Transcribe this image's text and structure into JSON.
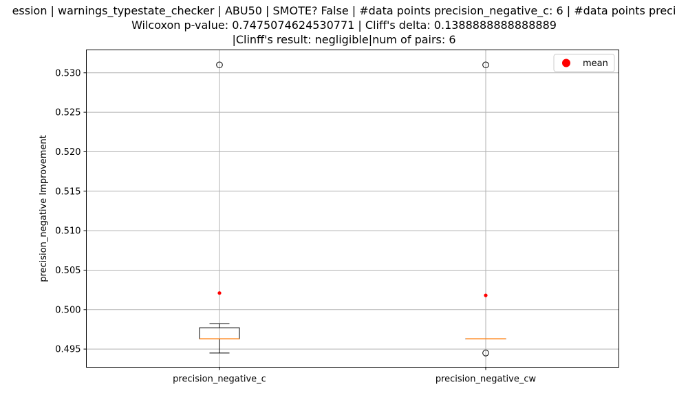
{
  "chart_data": {
    "type": "box",
    "title_lines": [
      "ession | warnings_typestate_checker | ABU50 | SMOTE? False | #data points precision_negative_c: 6 | #data points preci",
      "Wilcoxon p-value: 0.7475074624530771 | Cliff's delta: 0.1388888888888889",
      "|Clinff's result: negligible|num of pairs: 6"
    ],
    "xlabel": "",
    "ylabel": "precision_negative Improvement",
    "categories": [
      "precision_negative_c",
      "precision_negative_cw"
    ],
    "ylim": [
      0.4927,
      0.5329
    ],
    "yticks": [
      0.495,
      0.5,
      0.505,
      0.51,
      0.515,
      0.52,
      0.525,
      0.53
    ],
    "ytick_labels": [
      "0.495",
      "0.500",
      "0.505",
      "0.510",
      "0.515",
      "0.520",
      "0.525",
      "0.530"
    ],
    "grid": true,
    "legend": {
      "position": "top-right",
      "entries": [
        {
          "label": "mean",
          "marker": "circle",
          "color": "#ff0000"
        }
      ]
    },
    "boxes": [
      {
        "name": "precision_negative_c",
        "whisker_low": 0.4945,
        "q1": 0.4963,
        "median": 0.4963,
        "q3": 0.4977,
        "whisker_high": 0.4982,
        "mean": 0.5021,
        "outliers": [
          0.531
        ]
      },
      {
        "name": "precision_negative_cw",
        "whisker_low": 0.4963,
        "q1": 0.4963,
        "median": 0.4963,
        "q3": 0.4963,
        "whisker_high": 0.4963,
        "mean": 0.5018,
        "outliers": [
          0.531,
          0.4945
        ]
      }
    ],
    "colors": {
      "median": "#ff7f0e",
      "mean": "#ff0000",
      "grid": "#b0b0b0",
      "box": "#000000"
    }
  }
}
